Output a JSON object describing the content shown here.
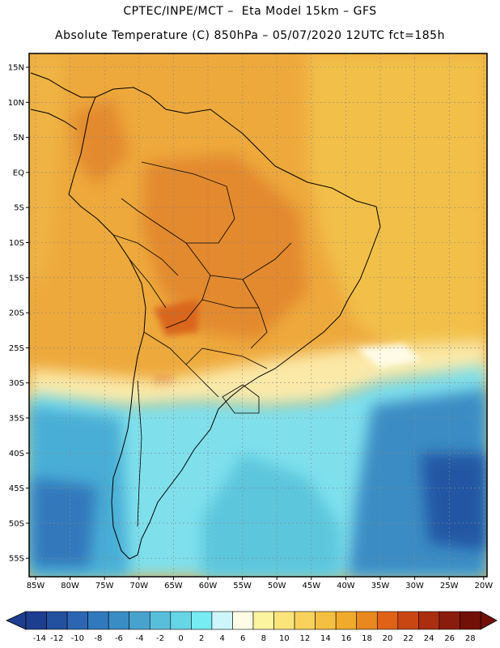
{
  "header": {
    "line1": "CPTEC/INPE/MCT –  Eta Model 15km – GFS",
    "line2": "Absolute Temperature (C) 850hPa – 05/07/2020 12UTC fct=185h"
  },
  "map": {
    "lat_labels": [
      "15N",
      "10N",
      "5N",
      "EQ",
      "5S",
      "10S",
      "15S",
      "20S",
      "25S",
      "30S",
      "35S",
      "40S",
      "45S",
      "50S",
      "55S"
    ],
    "lon_labels": [
      "85W",
      "80W",
      "75W",
      "70W",
      "65W",
      "60W",
      "55W",
      "50W",
      "45W",
      "40W",
      "35W",
      "30W",
      "25W",
      "20W"
    ],
    "gridlines": true
  },
  "colorbar": {
    "labels": [
      "-14",
      "-12",
      "-10",
      "-8",
      "-6",
      "-4",
      "-2",
      "0",
      "2",
      "4",
      "6",
      "8",
      "10",
      "12",
      "14",
      "16",
      "18",
      "20",
      "22",
      "24",
      "26",
      "28"
    ],
    "colors": [
      "#1d3d8f",
      "#2450a0",
      "#2c66b3",
      "#3179bd",
      "#3a8cc4",
      "#47a3ce",
      "#58bfda",
      "#66d6e6",
      "#77ecf2",
      "#cdf6fa",
      "#fffbe6",
      "#fdf4a0",
      "#fbe47a",
      "#f8d25c",
      "#f4c042",
      "#f0aa2c",
      "#e8881f",
      "#df6216",
      "#c94612",
      "#ab2e10",
      "#8a1c0e",
      "#721008"
    ]
  },
  "palette": {
    "warm": "#eda83a",
    "hot": "#dd7a25",
    "ocean_warm": "#f2c24a",
    "pale": "#fdf0b5",
    "cold_a": "#7ee1ec",
    "cold_b": "#47b5d6",
    "cold_c": "#2f7fc0",
    "cold_d": "#1f4d9c"
  }
}
